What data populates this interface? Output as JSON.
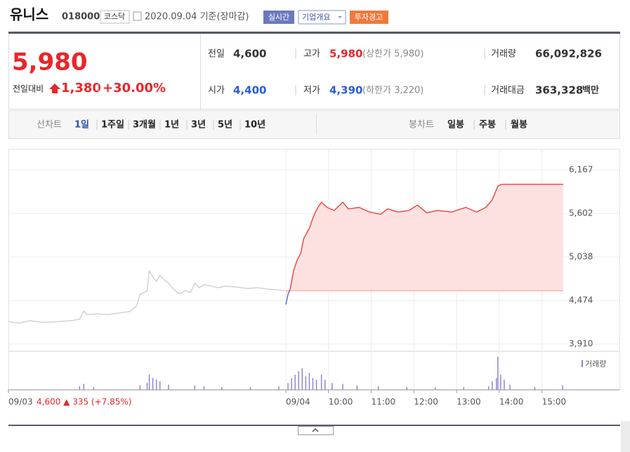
{
  "header": {
    "name": "유니스",
    "code": "018000",
    "market": "코스닥",
    "date": "2020.09.04 기준(장마감)",
    "realtime": "실시간",
    "company_info": "기업개요",
    "warning": "투자경고"
  },
  "quote": {
    "price": "5,980",
    "change_label": "전일대비",
    "change": "1,380",
    "change_rate": "+30.00%",
    "prev_label": "전일",
    "prev": "4,600",
    "high_label": "고가",
    "high": "5,980",
    "upper_limit": "(상한가 5,980)",
    "volume_label": "거래량",
    "volume": "66,092,826",
    "open_label": "시가",
    "open": "4,400",
    "low_label": "저가",
    "low": "4,390",
    "lower_limit": "(하한가 3,220)",
    "amount_label": "거래대금",
    "amount": "363,328",
    "amount_unit": "백만"
  },
  "tabs": {
    "line_label": "선차트",
    "line_periods": [
      "1일",
      "1주일",
      "3개월",
      "1년",
      "3년",
      "5년",
      "10년"
    ],
    "candle_label": "봉차트",
    "candle_periods": [
      "일봉",
      "주봉",
      "월봉"
    ]
  },
  "chart_data": [
    {
      "type": "line",
      "annotation": "4,600 ▲ 335 (+7.85%)",
      "xlim": [
        0,
        780
      ],
      "ylim": [
        3820,
        6440
      ],
      "xticks": [
        {
          "value": 0,
          "label": "09/03"
        },
        {
          "value": 390,
          "label": "09/04"
        },
        {
          "value": 450,
          "label": "10:00"
        },
        {
          "value": 510,
          "label": "11:00"
        },
        {
          "value": 570,
          "label": "12:00"
        },
        {
          "value": 630,
          "label": "13:00"
        },
        {
          "value": 690,
          "label": "14:00"
        },
        {
          "value": 750,
          "label": "15:00"
        }
      ],
      "yticks": [
        {
          "value": 3910,
          "label": "3,910"
        },
        {
          "value": 4474,
          "label": "4,474"
        },
        {
          "value": 5038,
          "label": "5,038"
        },
        {
          "value": 5602,
          "label": "5,602"
        },
        {
          "value": 6167,
          "label": "6,167"
        }
      ],
      "grid": true,
      "series": [
        {
          "color": "#cfcfcf",
          "x": [
            0,
            15,
            30,
            50,
            70,
            90,
            100,
            106,
            110,
            125,
            140,
            155,
            170,
            180,
            185,
            195,
            198,
            203,
            208,
            213,
            218,
            225,
            232,
            240,
            248,
            256,
            262,
            268,
            275,
            285,
            295,
            305,
            320,
            335,
            350,
            365,
            380,
            389
          ],
          "values": [
            4200,
            4180,
            4210,
            4190,
            4200,
            4215,
            4230,
            4340,
            4290,
            4300,
            4290,
            4310,
            4330,
            4400,
            4550,
            4600,
            4860,
            4780,
            4720,
            4800,
            4750,
            4700,
            4620,
            4560,
            4600,
            4580,
            4700,
            4640,
            4680,
            4660,
            4640,
            4660,
            4650,
            4630,
            4640,
            4620,
            4610,
            4600
          ]
        },
        {
          "color": "#f0403c",
          "down_color": "#3f78dc",
          "fill": "#fde1e1",
          "base": 4600,
          "x": [
            390,
            393,
            396,
            401,
            406,
            411,
            415,
            423,
            430,
            435,
            440,
            448,
            458,
            470,
            478,
            493,
            508,
            523,
            533,
            548,
            563,
            575,
            588,
            603,
            623,
            643,
            658,
            671,
            680,
            688,
            693,
            780
          ],
          "values": [
            4420,
            4547,
            4620,
            4865,
            5000,
            5090,
            5275,
            5410,
            5590,
            5680,
            5748,
            5680,
            5640,
            5748,
            5660,
            5680,
            5620,
            5590,
            5660,
            5620,
            5640,
            5710,
            5610,
            5640,
            5620,
            5680,
            5620,
            5680,
            5775,
            5955,
            5980,
            5980
          ]
        }
      ]
    },
    {
      "type": "bar",
      "legend": "거래량",
      "color": "#8a7fd0",
      "ylim": [
        0,
        2000000
      ],
      "x": [
        100,
        106,
        120,
        185,
        195,
        198,
        203,
        208,
        213,
        225,
        262,
        275,
        300,
        340,
        380,
        393,
        398,
        403,
        408,
        413,
        418,
        423,
        428,
        433,
        440,
        445,
        455,
        470,
        490,
        520,
        560,
        600,
        640,
        675,
        680,
        686,
        688,
        692,
        697,
        705,
        740,
        779
      ],
      "values": [
        200000,
        350000,
        150000,
        250000,
        400000,
        900000,
        700000,
        600000,
        500000,
        300000,
        250000,
        200000,
        150000,
        150000,
        200000,
        400000,
        700000,
        900000,
        1100000,
        1300000,
        800000,
        1000000,
        700000,
        600000,
        900000,
        600000,
        400000,
        350000,
        250000,
        200000,
        150000,
        120000,
        150000,
        200000,
        500000,
        700000,
        2000000,
        900000,
        600000,
        300000,
        150000,
        250000
      ]
    }
  ]
}
